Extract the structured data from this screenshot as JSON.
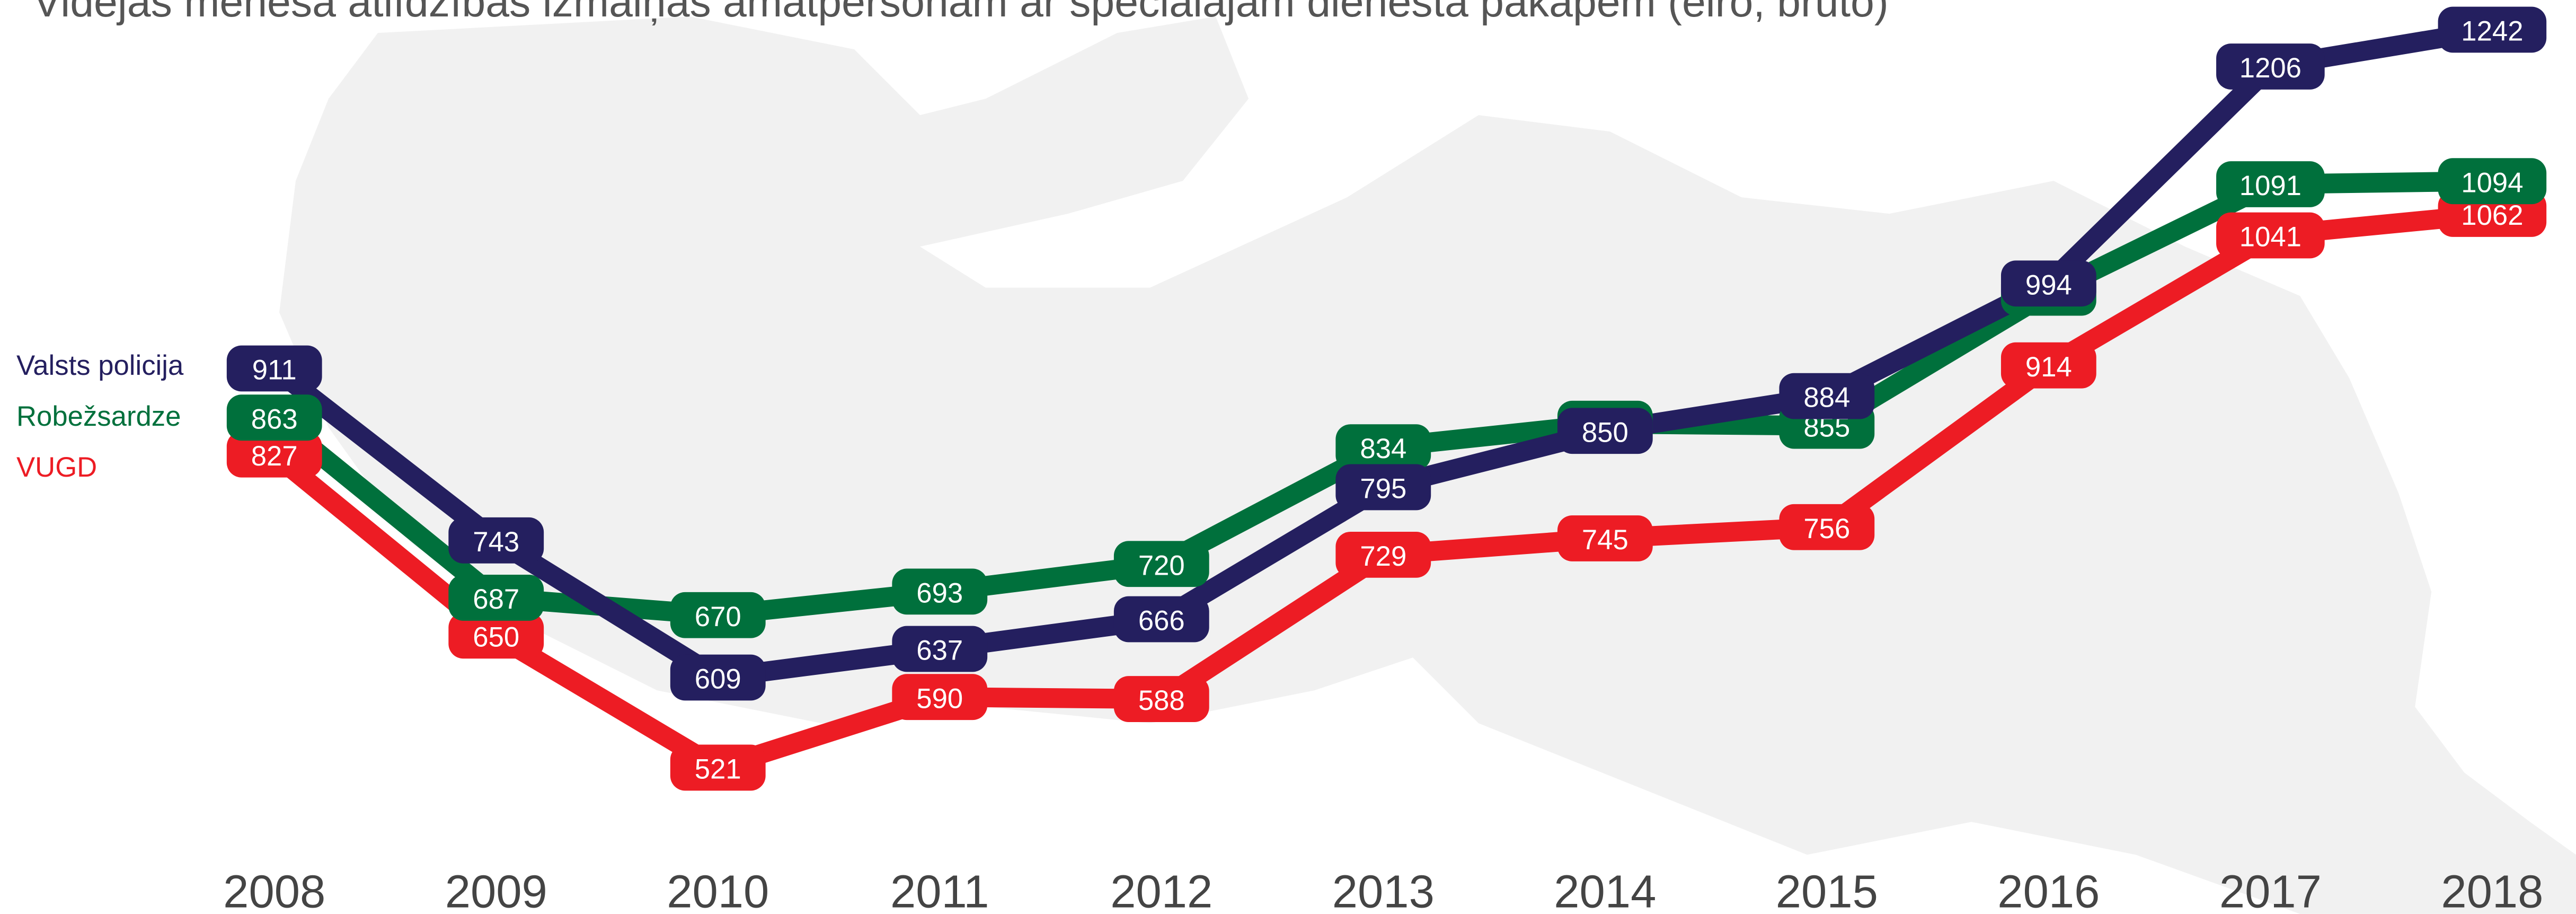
{
  "chart_data": {
    "type": "line",
    "title": "Vidējās mēneša atlīdzības izmaiņas amatpersonām ar speciālajām dienesta pakāpēm (eiro, bruto)",
    "categories": [
      "2008",
      "2009",
      "2010",
      "2011",
      "2012",
      "2013",
      "2014",
      "2015",
      "2016",
      "2017",
      "2018"
    ],
    "series": [
      {
        "name": "Valsts policija",
        "color": "#241f5f",
        "values": [
          911,
          743,
          609,
          637,
          666,
          795,
          850,
          884,
          994,
          1206,
          1242
        ]
      },
      {
        "name": "Robežsardze",
        "color": "#00703c",
        "values": [
          863,
          687,
          670,
          693,
          720,
          834,
          857,
          855,
          985,
          1091,
          1094
        ]
      },
      {
        "name": "VUGD",
        "color": "#ed1c24",
        "values": [
          827,
          650,
          521,
          590,
          588,
          729,
          745,
          756,
          914,
          1041,
          1062
        ]
      }
    ]
  }
}
